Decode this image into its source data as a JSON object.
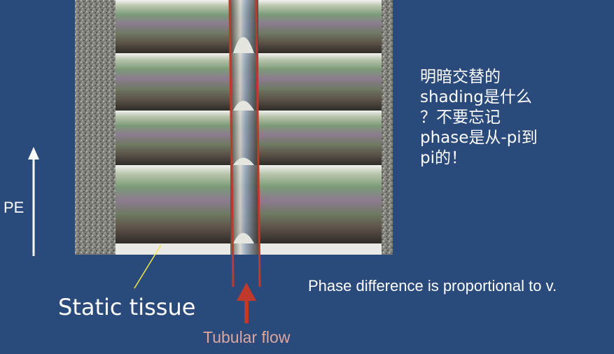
{
  "labels": {
    "pe": "PE",
    "static_tissue": "Static tissue",
    "tubular_flow": "Tubular flow",
    "phase_difference": "Phase difference is proportional to v."
  },
  "side_note": {
    "line1": "明暗交替的",
    "line2": "shading是什么",
    "line3": "？不要忘记",
    "line4": "phase是从-pi到",
    "line5": "pi的！"
  },
  "colors": {
    "background": "#2b4a7c",
    "flow_lines": "#c0392b",
    "flow_arrow": "#c0392b",
    "tubular_flow_text": "#d9a7a0",
    "pointer_line": "#f1e84a",
    "pe_arrow": "#ffffff"
  },
  "icons": {
    "pe_arrow": "arrow-up-icon",
    "flow_arrow": "arrow-up-icon"
  }
}
